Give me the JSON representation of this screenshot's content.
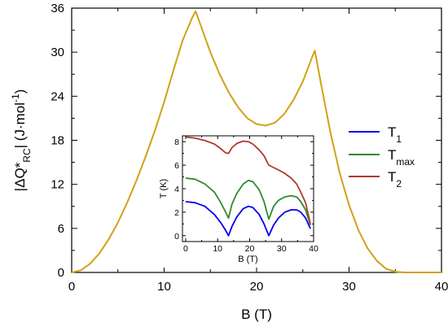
{
  "chart_data": [
    {
      "type": "line",
      "xlabel": "B (T)",
      "ylabel": "|ΔQ*RC| (J·mol-1)",
      "xlim": [
        0,
        40
      ],
      "ylim": [
        0,
        36
      ],
      "x_ticks": [
        "0",
        "10",
        "20",
        "30",
        "40"
      ],
      "y_ticks": [
        "0",
        "6",
        "12",
        "18",
        "24",
        "30",
        "36"
      ],
      "grid": false,
      "series": [
        {
          "color": "#d4a017",
          "x": [
            0,
            1,
            2,
            3,
            4,
            5,
            6,
            7,
            8,
            9,
            10,
            11,
            12,
            13,
            13.4,
            14,
            15,
            16,
            17,
            18,
            19,
            20,
            21,
            22,
            23,
            24,
            25,
            26,
            26.3,
            27,
            28,
            29,
            30,
            31,
            32,
            33,
            34,
            35,
            36,
            37,
            38,
            39,
            40
          ],
          "y": [
            0,
            0.3,
            1.2,
            2.6,
            4.5,
            6.8,
            9.5,
            12.5,
            15.8,
            19.3,
            23.2,
            27.5,
            31.6,
            34.6,
            35.6,
            33.5,
            30.0,
            27.0,
            24.5,
            22.5,
            21.0,
            20.2,
            20.0,
            20.4,
            21.6,
            23.5,
            26.0,
            29.3,
            30.2,
            25.5,
            19.0,
            13.5,
            9.2,
            5.8,
            3.3,
            1.6,
            0.5,
            0.1,
            0,
            0,
            0,
            0,
            0
          ]
        }
      ]
    },
    {
      "type": "line",
      "xlabel": "B (T)",
      "ylabel": "T (K)",
      "xlim": [
        -1,
        40
      ],
      "ylim": [
        -0.5,
        8.5
      ],
      "x_ticks": [
        "0",
        "10",
        "20",
        "30",
        "40"
      ],
      "y_ticks": [
        "0",
        "2",
        "4",
        "6",
        "8"
      ],
      "grid": false,
      "legend": "outside-right",
      "series": [
        {
          "name": "T1",
          "color": "#0000ee",
          "x": [
            0,
            3,
            6,
            9,
            11,
            12.5,
            13.4,
            14.5,
            16,
            18,
            19.6,
            21,
            23,
            24.5,
            26,
            27.5,
            29,
            31,
            33,
            34.7,
            36,
            37.5,
            39
          ],
          "y": [
            2.9,
            2.8,
            2.5,
            1.8,
            1.1,
            0.45,
            0,
            0.8,
            1.6,
            2.3,
            2.5,
            2.4,
            1.8,
            1.0,
            0,
            0.9,
            1.5,
            2.0,
            2.2,
            2.2,
            2.0,
            1.5,
            0.6
          ]
        },
        {
          "name": "Tmax",
          "color": "#2e8b2e",
          "x": [
            0,
            3,
            6,
            9,
            11,
            12.5,
            13.4,
            14.5,
            16,
            18,
            19.6,
            21,
            23,
            24.5,
            26,
            27.5,
            29,
            31,
            33,
            34.7,
            36,
            37.5,
            39
          ],
          "y": [
            4.9,
            4.8,
            4.4,
            3.7,
            2.8,
            2.0,
            1.5,
            2.7,
            3.6,
            4.4,
            4.7,
            4.6,
            3.9,
            2.9,
            1.4,
            2.5,
            3.0,
            3.3,
            3.4,
            3.3,
            2.9,
            2.2,
            0.9
          ]
        },
        {
          "name": "T2",
          "color": "#b03a2e",
          "x": [
            0,
            3,
            6,
            9,
            11,
            12.5,
            13.4,
            14.5,
            16,
            18,
            19.6,
            21,
            23,
            24.5,
            26,
            27.5,
            29,
            31,
            33,
            34.7,
            36,
            37.5,
            39
          ],
          "y": [
            8.4,
            8.3,
            8.1,
            7.8,
            7.4,
            7.05,
            7.0,
            7.5,
            7.85,
            8.05,
            8.0,
            7.8,
            7.3,
            6.8,
            6.0,
            5.8,
            5.6,
            5.3,
            4.9,
            4.4,
            3.7,
            2.8,
            1.0
          ]
        }
      ]
    }
  ]
}
